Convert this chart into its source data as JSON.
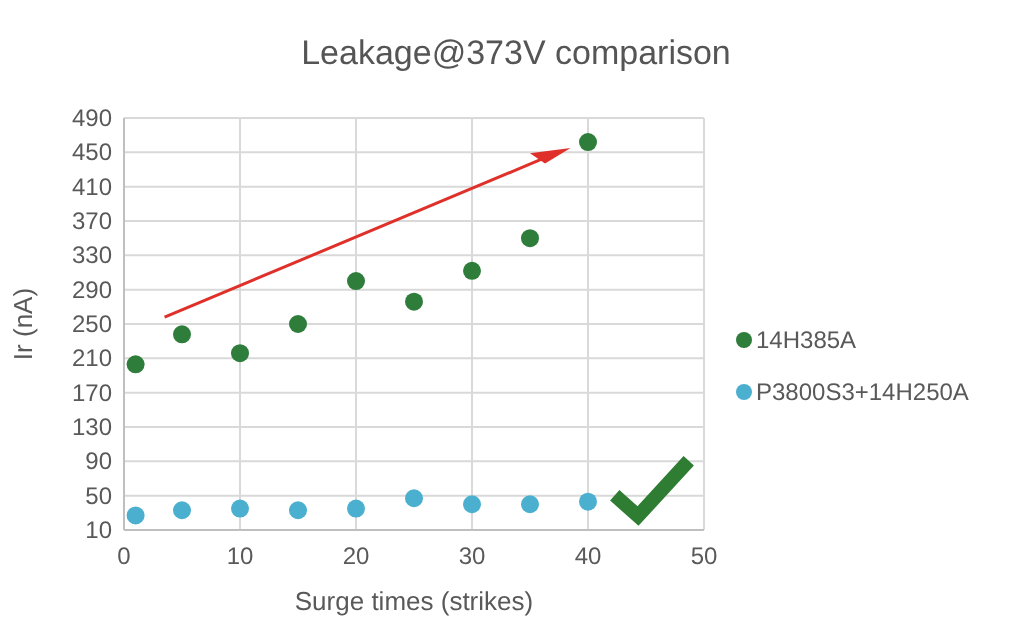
{
  "chart_data": {
    "type": "scatter",
    "title": "Leakage@373V comparison",
    "xlabel": "Surge times (strikes)",
    "ylabel": "Ir (nA)",
    "x": [
      1,
      5,
      10,
      15,
      20,
      25,
      30,
      35,
      40
    ],
    "series": [
      {
        "name": "14H385A",
        "color": "#2e7d3b",
        "values": [
          203,
          238,
          216,
          250,
          300,
          276,
          312,
          350,
          462
        ]
      },
      {
        "name": "P3800S3+14H250A",
        "color": "#4bafcf",
        "values": [
          27,
          33,
          35,
          33,
          35,
          47,
          40,
          40,
          43
        ]
      }
    ],
    "xlim": [
      0,
      50
    ],
    "xticks": [
      0,
      10,
      20,
      30,
      40,
      50
    ],
    "ylim": [
      10,
      490
    ],
    "yticks": [
      10,
      50,
      90,
      130,
      170,
      210,
      250,
      290,
      330,
      370,
      410,
      450,
      490
    ],
    "grid": true,
    "legend": "right",
    "marker": "circle"
  }
}
